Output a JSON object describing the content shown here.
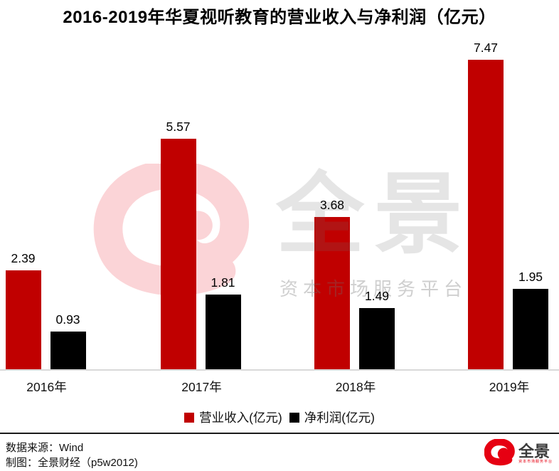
{
  "title": "2016-2019年华夏视听教育的营业收入与净利润（亿元）",
  "chart_data": {
    "type": "bar",
    "title": "2016-2019年华夏视听教育的营业收入与净利润（亿元）",
    "categories": [
      "2016年",
      "2017年",
      "2018年",
      "2019年"
    ],
    "series": [
      {
        "name": "营业收入(亿元)",
        "color": "#c00000",
        "values": [
          2.39,
          5.57,
          3.68,
          7.47
        ]
      },
      {
        "name": "净利润(亿元)",
        "color": "#000000",
        "values": [
          0.93,
          1.81,
          1.49,
          1.95
        ]
      }
    ],
    "value_labels": true,
    "ylim": [
      0,
      7.9
    ],
    "grid": false,
    "legend_position": "bottom"
  },
  "watermark": {
    "logo_text": "全景",
    "tagline": "资本市场服务平台"
  },
  "footer": {
    "source": "数据来源：Wind",
    "credit": "制图：全景财经（p5w2012)"
  },
  "brand": {
    "name": "全景",
    "tagline": "资本市场服务平台",
    "color": "#e60012"
  },
  "colors": {
    "revenue_bar": "#c00000",
    "profit_bar": "#000000",
    "axis_line": "#d9d9d9",
    "watermark_pink": "rgba(230,0,18,0.17)"
  }
}
